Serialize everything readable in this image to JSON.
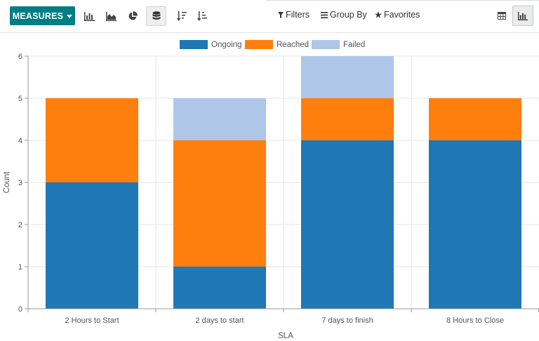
{
  "toolbar": {
    "measures_label": "MEASURES",
    "filters_label": "Filters",
    "group_by_label": "Group By",
    "favorites_label": "Favorites",
    "icons": [
      "bar-chart-icon",
      "area-chart-icon",
      "pie-chart-icon",
      "stacked-icon",
      "sort-descending-icon",
      "sort-ascending-icon"
    ],
    "active_mode": "stacked",
    "views": [
      "pivot-table-view",
      "graph-view"
    ],
    "active_view": "graph-view",
    "accent": "#017e84"
  },
  "chart_data": {
    "type": "bar",
    "stacked": true,
    "categories": [
      "2 Hours to Start",
      "2 days to start",
      "7 days to finish",
      "8 Hours to Close"
    ],
    "series": [
      {
        "name": "Ongoing",
        "color": "#1f77b4",
        "values": [
          3,
          1,
          4,
          4
        ]
      },
      {
        "name": "Reached",
        "color": "#ff7f0e",
        "values": [
          2,
          3,
          1,
          1
        ]
      },
      {
        "name": "Failed",
        "color": "#aec7e8",
        "values": [
          0,
          1,
          1,
          0
        ]
      }
    ],
    "xlabel": "SLA",
    "ylabel": "Count",
    "ylim": [
      0,
      6
    ],
    "yticks": [
      0,
      1,
      2,
      3,
      4,
      5,
      6
    ],
    "grid": true,
    "legend": "top-center"
  }
}
